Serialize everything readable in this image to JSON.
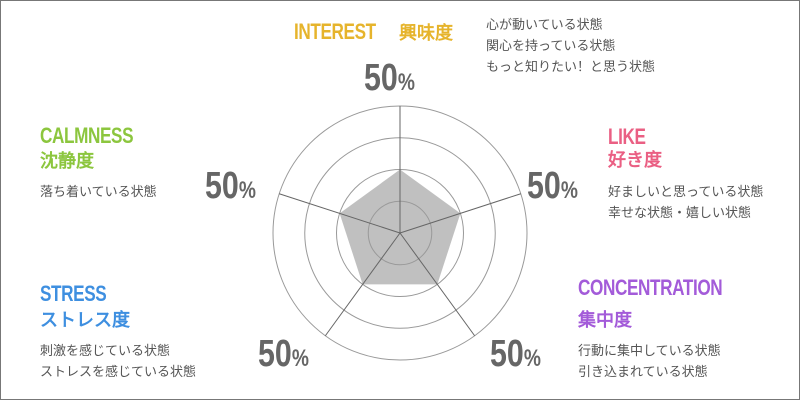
{
  "colors": {
    "interest": "#e6b42c",
    "like": "#ea5f83",
    "concentration": "#a35bd9",
    "stress": "#3e8fe0",
    "calmness": "#8cc63e",
    "polygon": "#c0c0c0",
    "grid": "#888888"
  },
  "chart_data": {
    "type": "radar",
    "axes": [
      "INTEREST",
      "LIKE",
      "CONCENTRATION",
      "STRESS",
      "CALMNESS"
    ],
    "values": [
      50,
      50,
      50,
      50,
      50
    ],
    "range": [
      0,
      100
    ],
    "rings": 4
  },
  "interest": {
    "title": "INTEREST",
    "jp": "興味度",
    "lines": [
      "心が動いている状態",
      "関心を持っている状態",
      "もっと知りたい！と思う状態"
    ],
    "value": "50",
    "unit": "%"
  },
  "like": {
    "title": "LIKE",
    "jp": "好き度",
    "lines": [
      "好ましいと思っている状態",
      "幸せな状態・嬉しい状態"
    ],
    "value": "50",
    "unit": "%"
  },
  "concentration": {
    "title": "CONCENTRATION",
    "jp": "集中度",
    "lines": [
      "行動に集中している状態",
      "引き込まれている状態"
    ],
    "value": "50",
    "unit": "%"
  },
  "stress": {
    "title": "STRESS",
    "jp": "ストレス度",
    "lines": [
      "刺激を感じている状態",
      "ストレスを感じている状態"
    ],
    "value": "50",
    "unit": "%"
  },
  "calmness": {
    "title": "CALMNESS",
    "jp": "沈静度",
    "lines": [
      "落ち着いている状態"
    ],
    "value": "50",
    "unit": "%"
  }
}
